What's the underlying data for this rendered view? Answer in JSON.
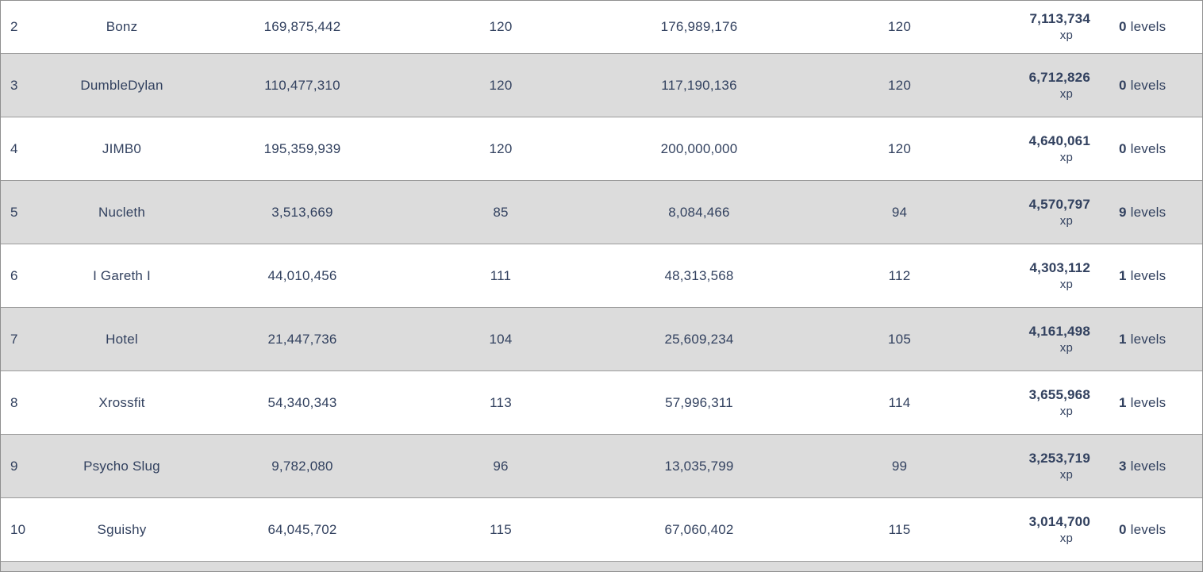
{
  "colors": {
    "text": "#32415f",
    "row_bg": "#ffffff",
    "row_alt_bg": "#dcdcdc",
    "border": "#9b9b9b"
  },
  "table": {
    "xp_suffix": "xp",
    "levels_suffix": "levels",
    "rows": [
      {
        "rank": "2",
        "name": "Bonz",
        "start_xp": "169,875,442",
        "start_level": "120",
        "end_xp": "176,989,176",
        "end_level": "120",
        "gained_xp": "7,113,734",
        "gained_levels": "0"
      },
      {
        "rank": "3",
        "name": "DumbleDylan",
        "start_xp": "110,477,310",
        "start_level": "120",
        "end_xp": "117,190,136",
        "end_level": "120",
        "gained_xp": "6,712,826",
        "gained_levels": "0"
      },
      {
        "rank": "4",
        "name": "JIMB0",
        "start_xp": "195,359,939",
        "start_level": "120",
        "end_xp": "200,000,000",
        "end_level": "120",
        "gained_xp": "4,640,061",
        "gained_levels": "0"
      },
      {
        "rank": "5",
        "name": "Nucleth",
        "start_xp": "3,513,669",
        "start_level": "85",
        "end_xp": "8,084,466",
        "end_level": "94",
        "gained_xp": "4,570,797",
        "gained_levels": "9"
      },
      {
        "rank": "6",
        "name": "I Gareth I",
        "start_xp": "44,010,456",
        "start_level": "111",
        "end_xp": "48,313,568",
        "end_level": "112",
        "gained_xp": "4,303,112",
        "gained_levels": "1"
      },
      {
        "rank": "7",
        "name": "Hotel",
        "start_xp": "21,447,736",
        "start_level": "104",
        "end_xp": "25,609,234",
        "end_level": "105",
        "gained_xp": "4,161,498",
        "gained_levels": "1"
      },
      {
        "rank": "8",
        "name": "Xrossfit",
        "start_xp": "54,340,343",
        "start_level": "113",
        "end_xp": "57,996,311",
        "end_level": "114",
        "gained_xp": "3,655,968",
        "gained_levels": "1"
      },
      {
        "rank": "9",
        "name": "Psycho Slug",
        "start_xp": "9,782,080",
        "start_level": "96",
        "end_xp": "13,035,799",
        "end_level": "99",
        "gained_xp": "3,253,719",
        "gained_levels": "3"
      },
      {
        "rank": "10",
        "name": "Sguishy",
        "start_xp": "64,045,702",
        "start_level": "115",
        "end_xp": "67,060,402",
        "end_level": "115",
        "gained_xp": "3,014,700",
        "gained_levels": "0"
      }
    ]
  }
}
